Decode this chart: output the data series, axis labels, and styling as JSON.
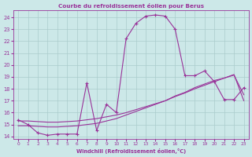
{
  "title": "Courbe du refroidissement éolien pour Berus",
  "xlabel": "Windchill (Refroidissement éolien,°C)",
  "background_color": "#cce8e8",
  "grid_color": "#aacccc",
  "line_color": "#993399",
  "xlim": [
    -0.5,
    23.5
  ],
  "ylim": [
    13.8,
    24.6
  ],
  "yticks": [
    14,
    15,
    16,
    17,
    18,
    19,
    20,
    21,
    22,
    23,
    24
  ],
  "xticks": [
    0,
    1,
    2,
    3,
    4,
    5,
    6,
    7,
    8,
    9,
    10,
    11,
    12,
    13,
    14,
    15,
    16,
    17,
    18,
    19,
    20,
    21,
    22,
    23
  ],
  "line1_x": [
    0,
    1,
    2,
    3,
    4,
    5,
    6,
    7,
    8,
    9,
    10,
    11,
    12,
    13,
    14,
    15,
    16,
    17,
    18,
    19,
    20,
    21,
    22,
    23
  ],
  "line1_y": [
    15.4,
    15.0,
    14.3,
    14.1,
    14.2,
    14.2,
    14.2,
    18.5,
    14.5,
    16.7,
    16.0,
    22.2,
    23.5,
    24.1,
    24.2,
    24.1,
    23.0,
    19.1,
    19.1,
    19.5,
    18.6,
    17.1,
    17.1,
    18.1
  ],
  "line2_x": [
    0,
    1,
    2,
    3,
    4,
    5,
    6,
    7,
    8,
    9,
    10,
    11,
    12,
    13,
    14,
    15,
    16,
    17,
    18,
    19,
    20,
    21,
    22,
    23
  ],
  "line2_y": [
    14.9,
    14.9,
    14.85,
    14.8,
    14.8,
    14.85,
    14.9,
    15.0,
    15.1,
    15.3,
    15.5,
    15.8,
    16.1,
    16.4,
    16.7,
    17.0,
    17.4,
    17.7,
    18.1,
    18.4,
    18.7,
    18.9,
    19.2,
    17.0
  ],
  "line3_x": [
    0,
    1,
    2,
    3,
    4,
    5,
    6,
    7,
    8,
    9,
    10,
    11,
    12,
    13,
    14,
    15,
    16,
    17,
    18,
    19,
    20,
    21,
    22,
    23
  ],
  "line3_y": [
    15.3,
    15.3,
    15.25,
    15.2,
    15.2,
    15.25,
    15.3,
    15.4,
    15.5,
    15.65,
    15.8,
    16.0,
    16.25,
    16.5,
    16.75,
    17.0,
    17.35,
    17.65,
    18.0,
    18.3,
    18.6,
    18.9,
    19.15,
    17.5
  ]
}
